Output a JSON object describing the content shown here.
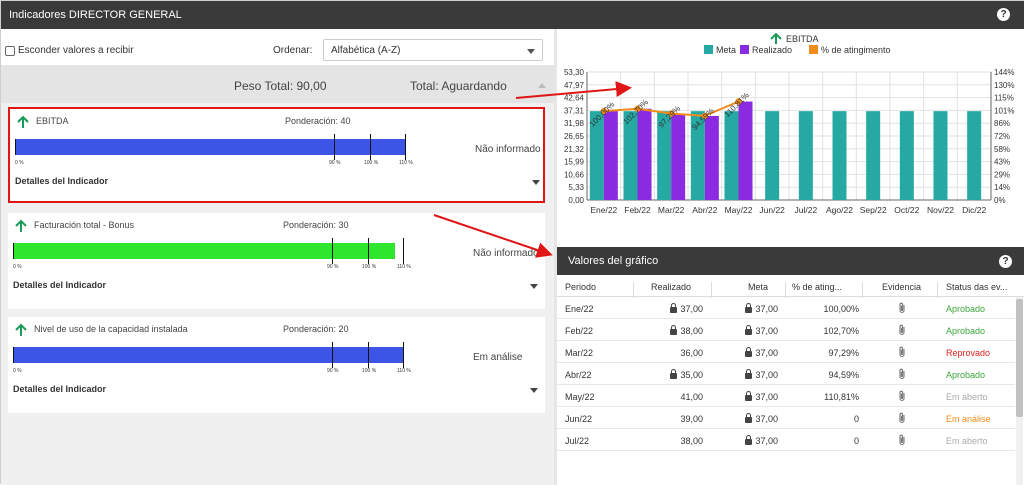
{
  "header": {
    "title": "Indicadores DIRECTOR GENERAL",
    "help_icon": "question-circle-icon"
  },
  "controls": {
    "hide_label": "Esconder valores a recibir",
    "order_label": "Ordenar:",
    "order_value": "Alfabética (A-Z)"
  },
  "summary": {
    "peso": "Peso Total: 90,00",
    "total": "Total: Aguardando"
  },
  "indicators": [
    {
      "name": "EBITDA",
      "ponderacion": "Ponderación: 40",
      "status": "Não informado",
      "details": "Detalles del Indicador",
      "fill_pct": 100,
      "color": "#3d55e6",
      "scale": [
        "0 %",
        "90 %",
        "100 %",
        "110 %"
      ]
    },
    {
      "name": "Facturación total - Bonus",
      "ponderacion": "Ponderación: 30",
      "status": "Não informado",
      "details": "Detalles del Indicador",
      "fill_pct": 98,
      "color": "#2ee62e",
      "scale": [
        "0 %",
        "90 %",
        "100 %",
        "110 %"
      ]
    },
    {
      "name": "Nivel de uso de la capacidad instalada",
      "ponderacion": "Ponderación: 20",
      "status": "Em análise",
      "details": "Detalles del Indicador",
      "fill_pct": 100,
      "color": "#3d55e6",
      "scale": [
        "0 %",
        "90 %",
        "100 %",
        "110 %"
      ]
    }
  ],
  "chart_data": {
    "type": "bar",
    "title": "EBITDA",
    "legend": [
      "Meta",
      "Realizado",
      "% de atingimento"
    ],
    "legend_position": "top",
    "colors": {
      "meta": "#26a9a3",
      "realizado": "#8a2be2",
      "pct": "#f28c1a"
    },
    "categories": [
      "Ene/22",
      "Feb/22",
      "Mar/22",
      "Abr/22",
      "May/22",
      "Jun/22",
      "Jul/22",
      "Ago/22",
      "Sep/22",
      "Oct/22",
      "Nov/22",
      "Dic/22"
    ],
    "series": [
      {
        "name": "Meta",
        "values": [
          37,
          37,
          37,
          37,
          37,
          37,
          37,
          37,
          37,
          37,
          37,
          37
        ]
      },
      {
        "name": "Realizado",
        "values": [
          37,
          38,
          36,
          35,
          41,
          null,
          null,
          null,
          null,
          null,
          null,
          null
        ]
      },
      {
        "name": "% de atingimento",
        "values": [
          100.0,
          102.7,
          97.29,
          94.59,
          110.81,
          null,
          null,
          null,
          null,
          null,
          null,
          null
        ]
      }
    ],
    "pct_labels": [
      "100,00%",
      "102,70%",
      "97,29%",
      "94,59%",
      "110,81%"
    ],
    "ylim": [
      0,
      53.3
    ],
    "y2lim": [
      0,
      144
    ],
    "yticks": [
      "53,30",
      "47,97",
      "42,64",
      "37,31",
      "31,98",
      "26,65",
      "21,32",
      "15,99",
      "10,66",
      "5,33",
      "0,00"
    ],
    "y2ticks": [
      "144%",
      "130%",
      "115%",
      "101%",
      "86%",
      "72%",
      "58%",
      "43%",
      "29%",
      "14%",
      "0%"
    ],
    "grid": true
  },
  "table": {
    "title": "Valores del gráfico",
    "columns": [
      "Periodo",
      "Realizado",
      "Meta",
      "% de ating...",
      "Evidencia",
      "Status das ev..."
    ],
    "rows": [
      {
        "periodo": "Ene/22",
        "realizado": "37,00",
        "lock_r": true,
        "meta": "37,00",
        "pct": "100,00%",
        "status": "Aprobado",
        "status_color": "#3aa63a"
      },
      {
        "periodo": "Feb/22",
        "realizado": "38,00",
        "lock_r": true,
        "meta": "37,00",
        "pct": "102,70%",
        "status": "Aprobado",
        "status_color": "#3aa63a"
      },
      {
        "periodo": "Mar/22",
        "realizado": "36,00",
        "lock_r": false,
        "meta": "37,00",
        "pct": "97,29%",
        "status": "Reprovado",
        "status_color": "#e02020"
      },
      {
        "periodo": "Abr/22",
        "realizado": "35,00",
        "lock_r": true,
        "meta": "37,00",
        "pct": "94,59%",
        "status": "Aprobado",
        "status_color": "#3aa63a"
      },
      {
        "periodo": "May/22",
        "realizado": "41,00",
        "lock_r": false,
        "meta": "37,00",
        "pct": "110,81%",
        "status": "Em aberto",
        "status_color": "#aaaaaa"
      },
      {
        "periodo": "Jun/22",
        "realizado": "39,00",
        "lock_r": false,
        "meta": "37,00",
        "pct": "0",
        "status": "Em análise",
        "status_color": "#f08a1a"
      },
      {
        "periodo": "Jul/22",
        "realizado": "38,00",
        "lock_r": false,
        "meta": "37,00",
        "pct": "0",
        "status": "Em aberto",
        "status_color": "#aaaaaa"
      }
    ]
  }
}
